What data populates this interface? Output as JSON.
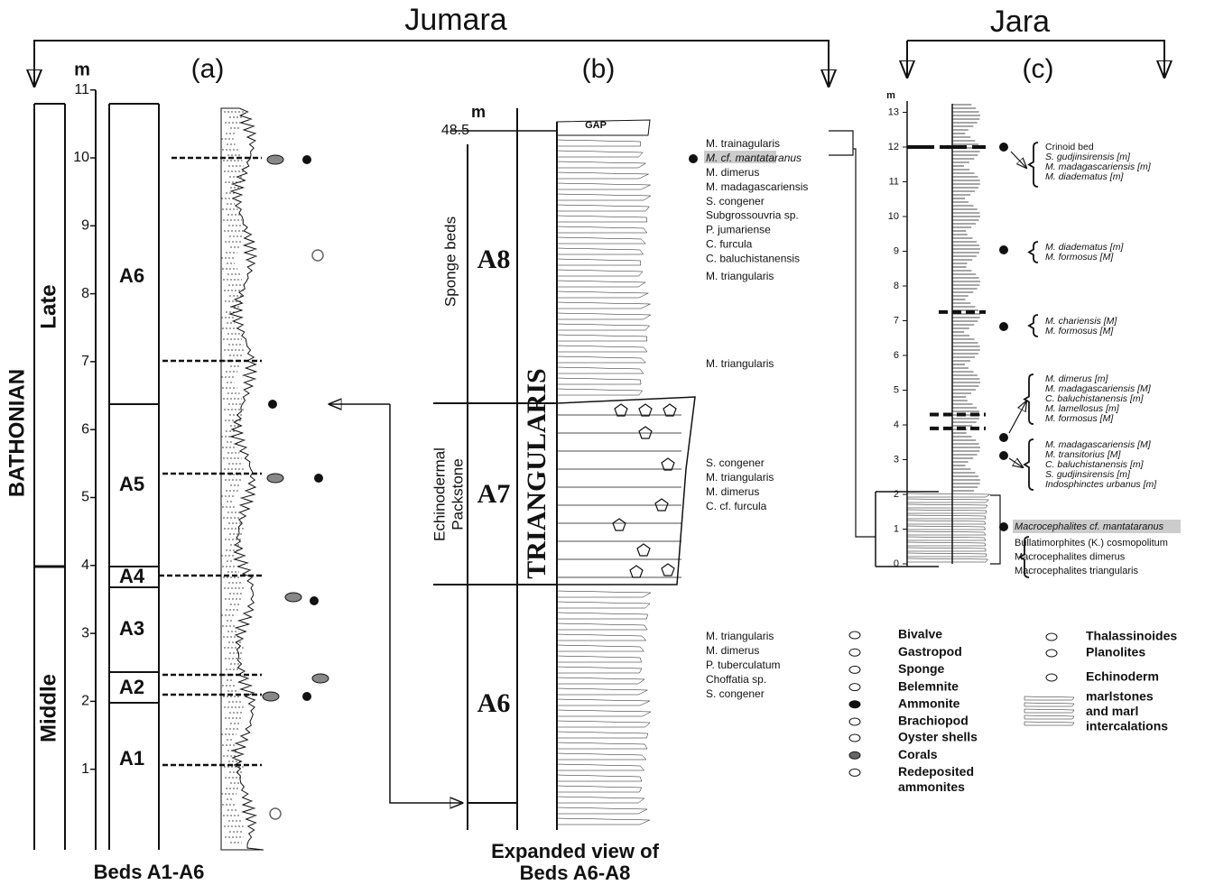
{
  "headers": {
    "jumara": "Jumara",
    "jara": "Jara"
  },
  "panel_a": {
    "label": "(a)",
    "unit": "m",
    "ticks": [
      1,
      2,
      3,
      4,
      5,
      6,
      7,
      8,
      9,
      10,
      11
    ],
    "stage": "BATHONIAN",
    "substages": [
      "Late",
      "Middle"
    ],
    "beds": [
      "A1",
      "A2",
      "A3",
      "A4",
      "A5",
      "A6"
    ],
    "caption": "Beds A1-A6"
  },
  "panel_b": {
    "label": "(b)",
    "unit": "m",
    "top": "48.5",
    "gap": "GAP",
    "zone": "TRIANGULARIS",
    "facies": {
      "sponge": "Sponge beds",
      "echinodermal": [
        "Echinodermal",
        "Packstone"
      ]
    },
    "beds": [
      "A8",
      "A7",
      "A6"
    ],
    "fauna_top": [
      "M. trainagularis",
      "M. cf. mantataranus",
      "M. dimerus",
      "M. madagascariensis",
      "S. congener",
      "Subgrossouvria sp.",
      "P. jumariense",
      "C. furcula",
      "C. baluchistanensis"
    ],
    "fauna_a8_mid": "M. triangularis",
    "fauna_a8_low": "M. triangularis",
    "fauna_a7": [
      "S. congener",
      "M. triangularis",
      "M. dimerus",
      "C. cf. furcula"
    ],
    "fauna_a6": [
      "M. triangularis",
      "M. dimerus",
      "P. tuberculatum",
      "Choffatia sp.",
      "S. congener"
    ],
    "caption": [
      "Expanded view of",
      "Beds A6-A8"
    ]
  },
  "panel_c": {
    "label": "(c)",
    "unit": "m",
    "ticks": [
      0,
      1,
      2,
      3,
      4,
      5,
      6,
      7,
      8,
      9,
      10,
      11,
      12,
      13
    ],
    "fauna_12": [
      "Crinoid bed",
      "S. gudjinsirensis [m]",
      "M. madagascariensis [m]",
      "M. diadematus [m]"
    ],
    "fauna_9": [
      "M. diadematus [m]",
      "M. formosus [M]"
    ],
    "fauna_7": [
      "M. chariensis [M]",
      "M. formosus [M]"
    ],
    "fauna_5": [
      "M. dimerus [m]",
      "M. madagascariensis [M]",
      "C. baluchistanensis [m]",
      "M. lamellosus [m]",
      "M. formosus [M]"
    ],
    "fauna_4": [
      "M. madagascariensis [M]",
      "M. transitorius [M]",
      "C. baluchistanensis [m]",
      "S. gudjinsirensis [m]",
      "Indosphinctes urbanus [m]"
    ],
    "fauna_2": "Macrocephalites cf. mantataranus",
    "fauna_base": [
      "Bullatimorphites (K.) cosmopolitum",
      "Macrocephalites dimerus",
      "Macrocephalites triangularis"
    ]
  },
  "legend": {
    "left": [
      "Bivalve",
      "Gastropod",
      "Sponge",
      "Belemnite",
      "Ammonite",
      "Brachiopod",
      "Oyster shells",
      "Corals",
      [
        "Redeposited",
        "ammonites"
      ]
    ],
    "right": [
      "Thalassinoides",
      "Planolites",
      "Echinoderm",
      [
        "marlstones",
        "and marl",
        "intercalations"
      ]
    ]
  }
}
